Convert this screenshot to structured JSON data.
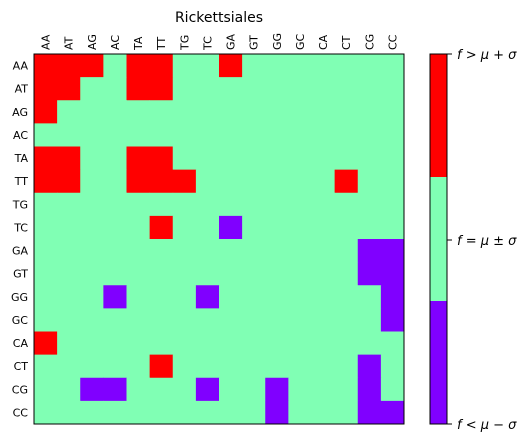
{
  "chart_data": {
    "type": "heatmap",
    "title": "Rickettsiales",
    "labels": [
      "AA",
      "AT",
      "AG",
      "AC",
      "TA",
      "TT",
      "TG",
      "TC",
      "GA",
      "GT",
      "GG",
      "GC",
      "CA",
      "CT",
      "CG",
      "CC"
    ],
    "matrix": [
      [
        1,
        1,
        1,
        0,
        1,
        1,
        0,
        0,
        1,
        0,
        0,
        0,
        0,
        0,
        0,
        0
      ],
      [
        1,
        1,
        0,
        0,
        1,
        1,
        0,
        0,
        0,
        0,
        0,
        0,
        0,
        0,
        0,
        0
      ],
      [
        1,
        0,
        0,
        0,
        0,
        0,
        0,
        0,
        0,
        0,
        0,
        0,
        0,
        0,
        0,
        0
      ],
      [
        0,
        0,
        0,
        0,
        0,
        0,
        0,
        0,
        0,
        0,
        0,
        0,
        0,
        0,
        0,
        0
      ],
      [
        1,
        1,
        0,
        0,
        1,
        1,
        0,
        0,
        0,
        0,
        0,
        0,
        0,
        0,
        0,
        0
      ],
      [
        1,
        1,
        0,
        0,
        1,
        1,
        1,
        0,
        0,
        0,
        0,
        0,
        0,
        1,
        0,
        0
      ],
      [
        0,
        0,
        0,
        0,
        0,
        0,
        0,
        0,
        0,
        0,
        0,
        0,
        0,
        0,
        0,
        0
      ],
      [
        0,
        0,
        0,
        0,
        0,
        1,
        0,
        0,
        -1,
        0,
        0,
        0,
        0,
        0,
        0,
        0
      ],
      [
        0,
        0,
        0,
        0,
        0,
        0,
        0,
        0,
        0,
        0,
        0,
        0,
        0,
        0,
        -1,
        -1
      ],
      [
        0,
        0,
        0,
        0,
        0,
        0,
        0,
        0,
        0,
        0,
        0,
        0,
        0,
        0,
        -1,
        -1
      ],
      [
        0,
        0,
        0,
        -1,
        0,
        0,
        0,
        -1,
        0,
        0,
        0,
        0,
        0,
        0,
        0,
        -1
      ],
      [
        0,
        0,
        0,
        0,
        0,
        0,
        0,
        0,
        0,
        0,
        0,
        0,
        0,
        0,
        0,
        -1
      ],
      [
        1,
        0,
        0,
        0,
        0,
        0,
        0,
        0,
        0,
        0,
        0,
        0,
        0,
        0,
        0,
        0
      ],
      [
        0,
        0,
        0,
        0,
        0,
        1,
        0,
        0,
        0,
        0,
        0,
        0,
        0,
        0,
        -1,
        0
      ],
      [
        0,
        0,
        -1,
        -1,
        0,
        0,
        0,
        -1,
        0,
        0,
        -1,
        0,
        0,
        0,
        -1,
        0
      ],
      [
        0,
        0,
        0,
        0,
        0,
        0,
        0,
        0,
        0,
        0,
        -1,
        0,
        0,
        0,
        -1,
        -1
      ]
    ],
    "colors": {
      "high": "#ff0000",
      "mid": "#80ffb4",
      "low": "#8000ff"
    },
    "colorbar": {
      "high_label": "f > μ + σ",
      "mid_label": "f = μ ± σ",
      "low_label": "f < μ − σ"
    }
  }
}
